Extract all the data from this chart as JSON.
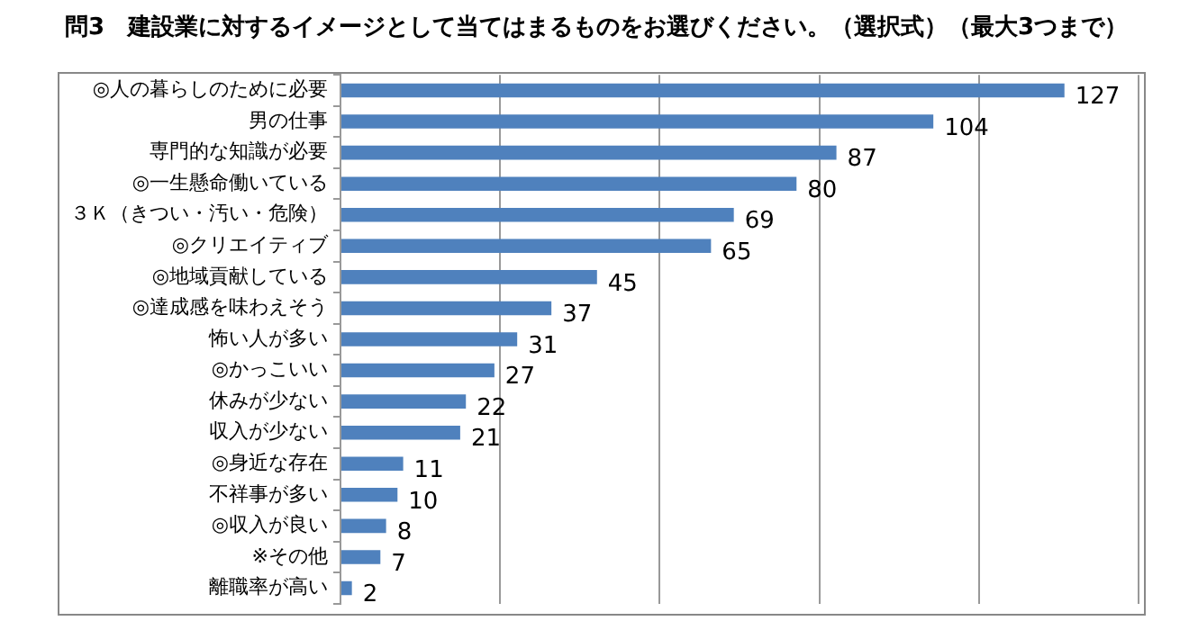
{
  "chart_data": {
    "type": "bar",
    "orientation": "horizontal",
    "title": "問3　建設業に対するイメージとして当てはまるものをお選びください。（選択式）（最大3つまで）",
    "categories": [
      "◎人の暮らしのために必要",
      "男の仕事",
      "専門的な知識が必要",
      "◎一生懸命働いている",
      "３Ｋ（きつい・汚い・危険）",
      "◎クリエイティブ",
      "◎地域貢献している",
      "◎達成感を味わえそう",
      "怖い人が多い",
      "◎かっこいい",
      "休みが少ない",
      "収入が少ない",
      "◎身近な存在",
      "不祥事が多い",
      "◎収入が良い",
      "※その他",
      "離職率が高い"
    ],
    "values": [
      127,
      104,
      87,
      80,
      69,
      65,
      45,
      37,
      31,
      27,
      22,
      21,
      11,
      10,
      8,
      7,
      2
    ],
    "color": "#4f81bd",
    "xlim": [
      0,
      140
    ],
    "xticks": [
      {
        "value": 0,
        "label": null
      },
      {
        "value": 28,
        "label": null
      },
      {
        "value": 56,
        "label": null
      },
      {
        "value": 84,
        "label": null
      },
      {
        "value": 112,
        "label": null
      },
      {
        "value": 140,
        "label": null
      }
    ],
    "grid": "x",
    "tick_labels": "y",
    "data_labels": true
  }
}
